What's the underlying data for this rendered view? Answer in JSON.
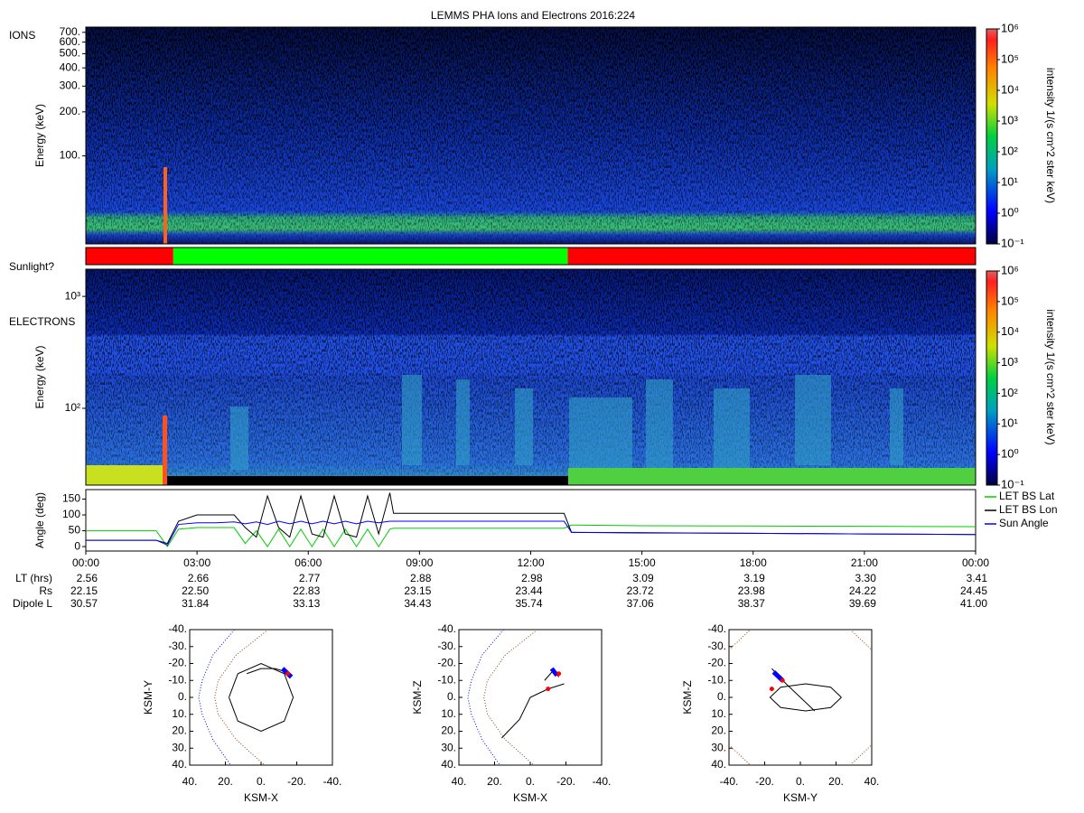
{
  "title": "LEMMS PHA Ions and Electrons  2016:224",
  "chart_data": [
    {
      "type": "spectrogram",
      "label": "IONS",
      "ylabel": "Energy (keV)",
      "log": true,
      "ylim": [
        25,
        760
      ],
      "yticks": [
        {
          "value": 100,
          "label": "100."
        },
        {
          "value": 200,
          "label": "200."
        },
        {
          "value": 300,
          "label": "300."
        },
        {
          "value": 400,
          "label": "400."
        },
        {
          "value": 500,
          "label": "500."
        },
        {
          "value": 600,
          "label": "600."
        },
        {
          "value": 700,
          "label": "700."
        }
      ],
      "colorbar": {
        "label": "intensity 1/(s cm^2 ster keV)",
        "lim": [
          0.1,
          1000000
        ],
        "ticks": [
          {
            "value": 0.1,
            "label": "10⁻¹"
          },
          {
            "value": 1,
            "label": "10⁰"
          },
          {
            "value": 10,
            "label": "10¹"
          },
          {
            "value": 100,
            "label": "10²"
          },
          {
            "value": 1000,
            "label": "10³"
          },
          {
            "value": 10000,
            "label": "10⁴"
          },
          {
            "value": 100000,
            "label": "10⁵"
          },
          {
            "value": 1000000,
            "label": "10⁶"
          }
        ]
      }
    },
    {
      "type": "timeline",
      "label": "Sunlight?",
      "xlim": [
        0,
        24
      ],
      "segments": [
        {
          "start": 0,
          "end": 2.36,
          "color": "#ff0000"
        },
        {
          "start": 2.36,
          "end": 13,
          "color": "#00ff00"
        },
        {
          "start": 13,
          "end": 24,
          "color": "#ff0000"
        }
      ]
    },
    {
      "type": "spectrogram",
      "label": "ELECTRONS",
      "ylabel": "Energy (keV)",
      "log": true,
      "ylim": [
        20.6,
        1750
      ],
      "yticks": [
        {
          "value": 100,
          "label": "10²"
        },
        {
          "value": 1000,
          "label": "10³"
        }
      ],
      "colorbar": {
        "label": "intensity 1/(s cm^2 ster keV)",
        "lim": [
          0.1,
          1000000
        ],
        "ticks": [
          {
            "value": 0.1,
            "label": "10⁻¹"
          },
          {
            "value": 1,
            "label": "10⁰"
          },
          {
            "value": 10,
            "label": "10¹"
          },
          {
            "value": 100,
            "label": "10²"
          },
          {
            "value": 1000,
            "label": "10³"
          },
          {
            "value": 10000,
            "label": "10⁴"
          },
          {
            "value": 100000,
            "label": "10⁵"
          },
          {
            "value": 1000000,
            "label": "10⁶"
          }
        ]
      }
    },
    {
      "type": "line",
      "ylabel": "Angle (deg)",
      "xlim": [
        0,
        24
      ],
      "ylim": [
        -14,
        180
      ],
      "yticks": [
        0,
        50,
        100,
        150
      ],
      "legend": "right-outside",
      "xticks": [
        {
          "value": 0,
          "label": "00:00"
        },
        {
          "value": 3,
          "label": "03:00"
        },
        {
          "value": 6,
          "label": "06:00"
        },
        {
          "value": 9,
          "label": "09:00"
        },
        {
          "value": 12,
          "label": "12:00"
        },
        {
          "value": 15,
          "label": "15:00"
        },
        {
          "value": 18,
          "label": "18:00"
        },
        {
          "value": 21,
          "label": "21:00"
        },
        {
          "value": 24,
          "label": "00:00"
        }
      ],
      "x": [
        0,
        1.9,
        2.2,
        2.5,
        3,
        3.5,
        4,
        4.3,
        4.6,
        4.9,
        5.2,
        5.5,
        5.8,
        6.1,
        6.4,
        6.7,
        7,
        7.3,
        7.6,
        7.9,
        8.2,
        8.3,
        10,
        12,
        12.9,
        13.1,
        15,
        18,
        21,
        24
      ],
      "series": [
        {
          "name": "LET BS Lat",
          "color": "#00cc00",
          "values": [
            50,
            50,
            0,
            55,
            60,
            60,
            60,
            10,
            50,
            0,
            55,
            0,
            55,
            0,
            55,
            0,
            55,
            0,
            55,
            0,
            55,
            58,
            58,
            58,
            58,
            68,
            66,
            65,
            64,
            63
          ]
        },
        {
          "name": "LET BS Lon",
          "color": "#000000",
          "values": [
            20,
            20,
            10,
            80,
            100,
            100,
            100,
            60,
            30,
            160,
            60,
            30,
            160,
            40,
            30,
            160,
            40,
            30,
            160,
            40,
            170,
            105,
            105,
            105,
            105,
            45,
            43,
            42,
            40,
            38
          ]
        },
        {
          "name": "Sun Angle",
          "color": "#0000ff",
          "values": [
            20,
            20,
            5,
            70,
            75,
            75,
            78,
            72,
            78,
            70,
            80,
            72,
            80,
            72,
            80,
            72,
            80,
            72,
            80,
            75,
            80,
            80,
            80,
            80,
            80,
            45,
            44,
            42,
            40,
            38
          ]
        }
      ]
    },
    {
      "type": "orbit",
      "xlabel": "KSM-X",
      "ylabel": "KSM-Y",
      "xlim": [
        40,
        -40
      ],
      "ylim": [
        40,
        -40
      ],
      "xticks": [
        {
          "value": 40,
          "label": "40."
        },
        {
          "value": 20,
          "label": "20."
        },
        {
          "value": 0,
          "label": "0."
        },
        {
          "value": -20,
          "label": "-20."
        },
        {
          "value": -40,
          "label": "-40."
        }
      ],
      "yticks": [
        {
          "value": -40,
          "label": "-40."
        },
        {
          "value": -30,
          "label": "-30."
        },
        {
          "value": -20,
          "label": "-20."
        },
        {
          "value": -10,
          "label": "-10."
        },
        {
          "value": 0,
          "label": "0."
        },
        {
          "value": 10,
          "label": "10."
        },
        {
          "value": 20,
          "label": "20."
        },
        {
          "value": 30,
          "label": "30."
        },
        {
          "value": 40,
          "label": "40."
        }
      ],
      "series": [
        {
          "color": "#8b4513",
          "style": "dotted",
          "x": [
            -4,
            14,
            24,
            26,
            24,
            14,
            -2
          ],
          "y": [
            -40,
            -25,
            -10,
            0,
            10,
            25,
            40
          ]
        },
        {
          "color": "#0000ff",
          "style": "dotted",
          "x": [
            15,
            27,
            33,
            35,
            33,
            27,
            17
          ],
          "y": [
            -40,
            -25,
            -10,
            0,
            10,
            25,
            40
          ]
        },
        {
          "color": "#000000",
          "style": "line",
          "x": [
            18,
            13,
            0,
            -13,
            -18,
            -13,
            0,
            13,
            18
          ],
          "y": [
            0,
            14,
            20,
            14,
            0,
            -14,
            -20,
            -14,
            0
          ]
        },
        {
          "color": "#000000",
          "style": "line",
          "x": [
            8,
            0,
            -8,
            -14
          ],
          "y": [
            -14,
            -17,
            -17,
            -15
          ]
        },
        {
          "color": "#0000ff",
          "style": "thick",
          "x": [
            -12,
            -17
          ],
          "y": [
            -17,
            -12
          ]
        },
        {
          "color": "#ff0000",
          "style": "dots",
          "x": [
            -15
          ],
          "y": [
            -14
          ]
        }
      ]
    },
    {
      "type": "orbit",
      "xlabel": "KSM-X",
      "ylabel": "KSM-Z",
      "xlim": [
        40,
        -40
      ],
      "ylim": [
        40,
        -40
      ],
      "xticks": [
        {
          "value": 40,
          "label": "40."
        },
        {
          "value": 20,
          "label": "20."
        },
        {
          "value": 0,
          "label": "0."
        },
        {
          "value": -20,
          "label": "-20."
        },
        {
          "value": -40,
          "label": "-40."
        }
      ],
      "yticks": [
        {
          "value": -40,
          "label": "-40."
        },
        {
          "value": -30,
          "label": "-30."
        },
        {
          "value": -20,
          "label": "-20."
        },
        {
          "value": -10,
          "label": "-10."
        },
        {
          "value": 0,
          "label": "0."
        },
        {
          "value": 10,
          "label": "10."
        },
        {
          "value": 20,
          "label": "20."
        },
        {
          "value": 30,
          "label": "30."
        },
        {
          "value": 40,
          "label": "40."
        }
      ],
      "series": [
        {
          "color": "#8b4513",
          "style": "dotted",
          "x": [
            -4,
            14,
            24,
            26,
            24,
            14,
            -2
          ],
          "y": [
            -40,
            -25,
            -10,
            0,
            10,
            25,
            40
          ]
        },
        {
          "color": "#0000ff",
          "style": "dotted",
          "x": [
            15,
            27,
            33,
            35,
            33,
            27,
            17
          ],
          "y": [
            -40,
            -25,
            -10,
            0,
            10,
            25,
            40
          ]
        },
        {
          "color": "#000000",
          "style": "line",
          "x": [
            16,
            6,
            0,
            -10,
            -19
          ],
          "y": [
            24,
            13,
            0,
            -5,
            -8
          ]
        },
        {
          "color": "#000000",
          "style": "line",
          "x": [
            -8,
            -13,
            -16
          ],
          "y": [
            -10,
            -16,
            -12
          ]
        },
        {
          "color": "#0000ff",
          "style": "thick",
          "x": [
            -12,
            -15
          ],
          "y": [
            -17,
            -13
          ]
        },
        {
          "color": "#ff0000",
          "style": "dots",
          "x": [
            -16,
            -10
          ],
          "y": [
            -14,
            -5
          ]
        }
      ]
    },
    {
      "type": "orbit",
      "xlabel": "KSM-Y",
      "ylabel": "KSM-Z",
      "xlim": [
        -40,
        40
      ],
      "ylim": [
        40,
        -40
      ],
      "xticks": [
        {
          "value": -40,
          "label": "-40."
        },
        {
          "value": -20,
          "label": "-20."
        },
        {
          "value": 0,
          "label": "0."
        },
        {
          "value": 20,
          "label": "20."
        },
        {
          "value": 40,
          "label": "40."
        }
      ],
      "yticks": [
        {
          "value": -40,
          "label": "-40."
        },
        {
          "value": -30,
          "label": "-30."
        },
        {
          "value": -20,
          "label": "-20."
        },
        {
          "value": -10,
          "label": "-10."
        },
        {
          "value": 0,
          "label": "0."
        },
        {
          "value": 10,
          "label": "10."
        },
        {
          "value": 20,
          "label": "20."
        },
        {
          "value": 30,
          "label": "30."
        },
        {
          "value": 40,
          "label": "40."
        }
      ],
      "series": [
        {
          "color": "#8b4513",
          "style": "dotted",
          "x": [
            -40,
            -34,
            -28
          ],
          "y": [
            -28,
            -34,
            -40
          ]
        },
        {
          "color": "#8b4513",
          "style": "dotted",
          "x": [
            28,
            34,
            40
          ],
          "y": [
            -40,
            -34,
            -28
          ]
        },
        {
          "color": "#8b4513",
          "style": "dotted",
          "x": [
            -40,
            -34,
            -28
          ],
          "y": [
            28,
            34,
            40
          ]
        },
        {
          "color": "#8b4513",
          "style": "dotted",
          "x": [
            28,
            34,
            40
          ],
          "y": [
            40,
            34,
            28
          ]
        },
        {
          "color": "#000000",
          "style": "line",
          "x": [
            23,
            17,
            3,
            -11,
            -17,
            -11,
            3,
            17,
            23
          ],
          "y": [
            0,
            6,
            8,
            6,
            0,
            -6,
            -8,
            -6,
            0
          ]
        },
        {
          "color": "#000000",
          "style": "line",
          "x": [
            -16,
            -8,
            0,
            8
          ],
          "y": [
            -17,
            -8,
            0,
            8
          ]
        },
        {
          "color": "#0000ff",
          "style": "thick",
          "x": [
            -15,
            -10
          ],
          "y": [
            -15,
            -10
          ]
        },
        {
          "color": "#ff0000",
          "style": "dots",
          "x": [
            -16,
            -10
          ],
          "y": [
            -5,
            -10
          ]
        }
      ]
    }
  ],
  "ephemeris": {
    "rows": [
      {
        "label": "LT (hrs)",
        "values": [
          "2.56",
          "2.66",
          "2.77",
          "2.88",
          "2.98",
          "3.09",
          "3.19",
          "3.30",
          "3.41"
        ]
      },
      {
        "label": "Rs",
        "values": [
          "22.15",
          "22.50",
          "22.83",
          "23.15",
          "23.44",
          "23.72",
          "23.98",
          "24.22",
          "24.45"
        ]
      },
      {
        "label": "Dipole L",
        "values": [
          "30.57",
          "31.84",
          "33.13",
          "34.43",
          "35.74",
          "37.06",
          "38.37",
          "39.69",
          "41.00"
        ]
      }
    ]
  }
}
